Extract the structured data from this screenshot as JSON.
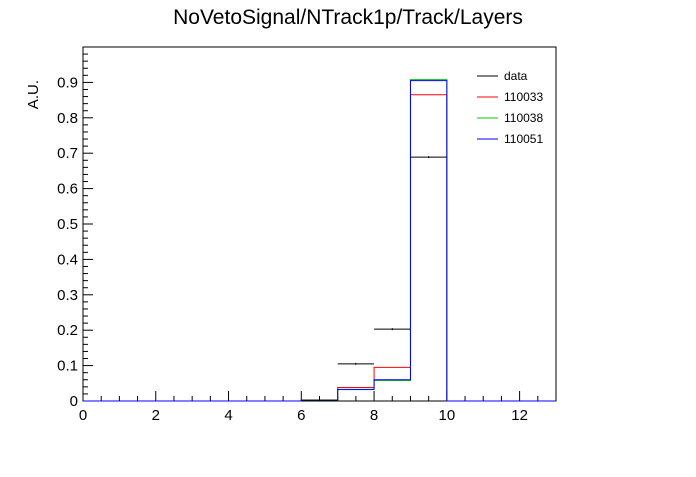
{
  "chart_data": {
    "type": "histogram",
    "title": "NoVetoSignal/NTrack1p/Track/Layers",
    "xlabel": "",
    "ylabel": "A.U.",
    "xlim": [
      0,
      13
    ],
    "ylim": [
      0,
      1.0
    ],
    "x_ticks": [
      0,
      2,
      4,
      6,
      8,
      10,
      12
    ],
    "y_ticks": [
      0,
      0.1,
      0.2,
      0.3,
      0.4,
      0.5,
      0.6,
      0.7,
      0.8,
      0.9
    ],
    "bin_edges": [
      0,
      1,
      2,
      3,
      4,
      5,
      6,
      7,
      8,
      9,
      10,
      11,
      12,
      13
    ],
    "grid": false,
    "legend_position": "top-right",
    "data": {
      "name": "data",
      "color": "#000000",
      "values": [
        0,
        0,
        0,
        0,
        0,
        0,
        0.002,
        0.105,
        0.203,
        0.689,
        0,
        0,
        0
      ]
    },
    "series": [
      {
        "name": "110033",
        "color": "#ff0000",
        "values": [
          0,
          0,
          0,
          0,
          0,
          0,
          0.003,
          0.038,
          0.095,
          0.865,
          0,
          0,
          0
        ]
      },
      {
        "name": "110038",
        "color": "#00cc00",
        "values": [
          0,
          0,
          0,
          0,
          0,
          0,
          0.002,
          0.032,
          0.058,
          0.908,
          0,
          0,
          0
        ]
      },
      {
        "name": "110051",
        "color": "#0000ff",
        "values": [
          0,
          0,
          0,
          0,
          0,
          0,
          0.002,
          0.033,
          0.06,
          0.905,
          0,
          0,
          0
        ]
      }
    ]
  }
}
